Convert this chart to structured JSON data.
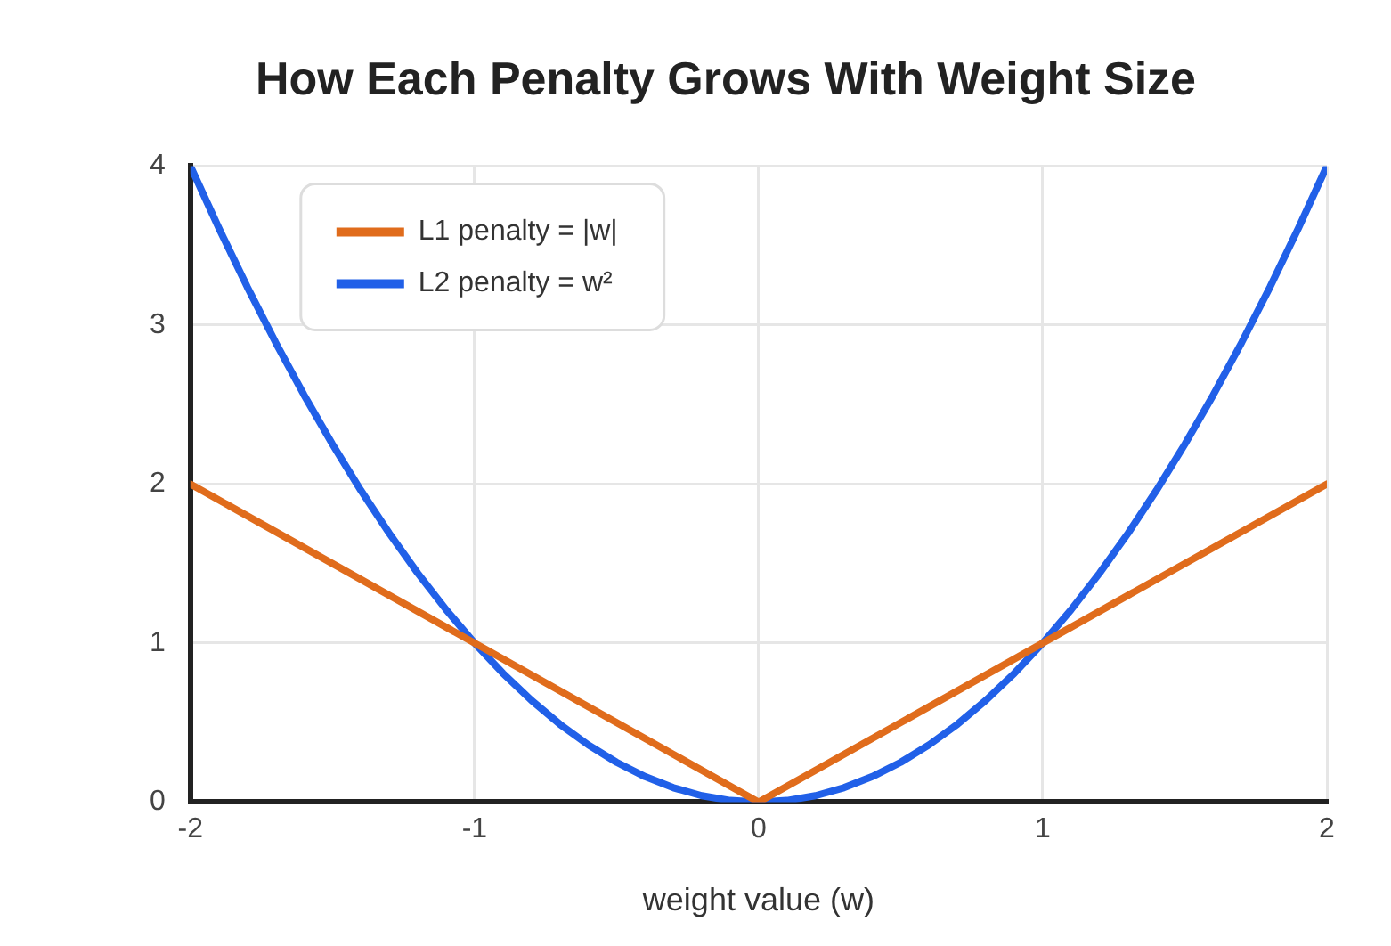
{
  "chart_data": {
    "type": "line",
    "title": "How Each Penalty Grows With Weight Size",
    "xlabel": "weight value (w)",
    "xlim": [
      -2,
      2
    ],
    "xticks": [
      -2,
      -1,
      0,
      1,
      2
    ],
    "ylim": [
      0,
      4
    ],
    "yticks": [
      0,
      1,
      2,
      3,
      4
    ],
    "grid": true,
    "legend": "top left",
    "series": [
      {
        "name": "L1 penalty = |w|",
        "color": "#e06c1c",
        "x": [
          -2,
          0,
          2
        ],
        "values": [
          2,
          0,
          2
        ]
      },
      {
        "name": "L2 penalty = w²",
        "color": "#2160e8",
        "x": [
          -2,
          -1.9,
          -1.8,
          -1.7,
          -1.6,
          -1.5,
          -1.4,
          -1.3,
          -1.2,
          -1.1,
          -1,
          -0.9,
          -0.8,
          -0.7,
          -0.6,
          -0.5,
          -0.4,
          -0.3,
          -0.2,
          -0.1,
          0,
          0.1,
          0.2,
          0.3,
          0.4,
          0.5,
          0.6,
          0.7,
          0.8,
          0.9,
          1,
          1.1,
          1.2,
          1.3,
          1.4,
          1.5,
          1.6,
          1.7,
          1.8,
          1.9,
          2
        ],
        "values": [
          4,
          3.61,
          3.24,
          2.89,
          2.56,
          2.25,
          1.96,
          1.69,
          1.44,
          1.21,
          1,
          0.81,
          0.64,
          0.49,
          0.36,
          0.25,
          0.16,
          0.09,
          0.04,
          0.01,
          0,
          0.01,
          0.04,
          0.09,
          0.16,
          0.25,
          0.36,
          0.49,
          0.64,
          0.81,
          1,
          1.21,
          1.44,
          1.69,
          1.96,
          2.25,
          2.56,
          2.89,
          3.24,
          3.61,
          4
        ]
      }
    ]
  }
}
